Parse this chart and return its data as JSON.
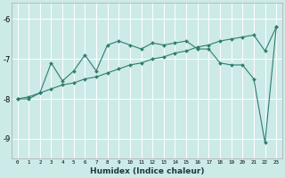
{
  "xlabel": "Humidex (Indice chaleur)",
  "bg_color": "#cceae8",
  "grid_color": "#ffffff",
  "line_color": "#2e7d6e",
  "xlim": [
    -0.5,
    23.5
  ],
  "ylim": [
    -9.5,
    -5.6
  ],
  "yticks": [
    -9,
    -8,
    -7,
    -6
  ],
  "xticks": [
    0,
    1,
    2,
    3,
    4,
    5,
    6,
    7,
    8,
    9,
    10,
    11,
    12,
    13,
    14,
    15,
    16,
    17,
    18,
    19,
    20,
    21,
    22,
    23
  ],
  "line1_x": [
    0,
    1,
    2,
    3,
    4,
    5,
    6,
    7,
    8,
    9,
    10,
    11,
    12,
    13,
    14,
    15,
    16,
    17,
    18,
    19,
    20,
    21,
    22,
    23
  ],
  "line1_y": [
    -8.0,
    -8.0,
    -7.85,
    -7.1,
    -7.55,
    -7.3,
    -6.9,
    -7.3,
    -6.65,
    -6.55,
    -6.65,
    -6.75,
    -6.6,
    -6.65,
    -6.6,
    -6.55,
    -6.75,
    -6.75,
    -7.1,
    -7.15,
    -7.15,
    -7.5,
    -9.1,
    -6.2
  ],
  "line2_x": [
    0,
    1,
    2,
    3,
    4,
    5,
    6,
    7,
    8,
    9,
    10,
    11,
    12,
    13,
    14,
    15,
    16,
    17,
    18,
    19,
    20,
    21,
    22,
    23
  ],
  "line2_y": [
    -8.0,
    -7.95,
    -7.85,
    -7.75,
    -7.65,
    -7.6,
    -7.5,
    -7.45,
    -7.35,
    -7.25,
    -7.15,
    -7.1,
    -7.0,
    -6.95,
    -6.85,
    -6.8,
    -6.7,
    -6.65,
    -6.55,
    -6.5,
    -6.45,
    -6.4,
    -6.8,
    -6.2
  ]
}
